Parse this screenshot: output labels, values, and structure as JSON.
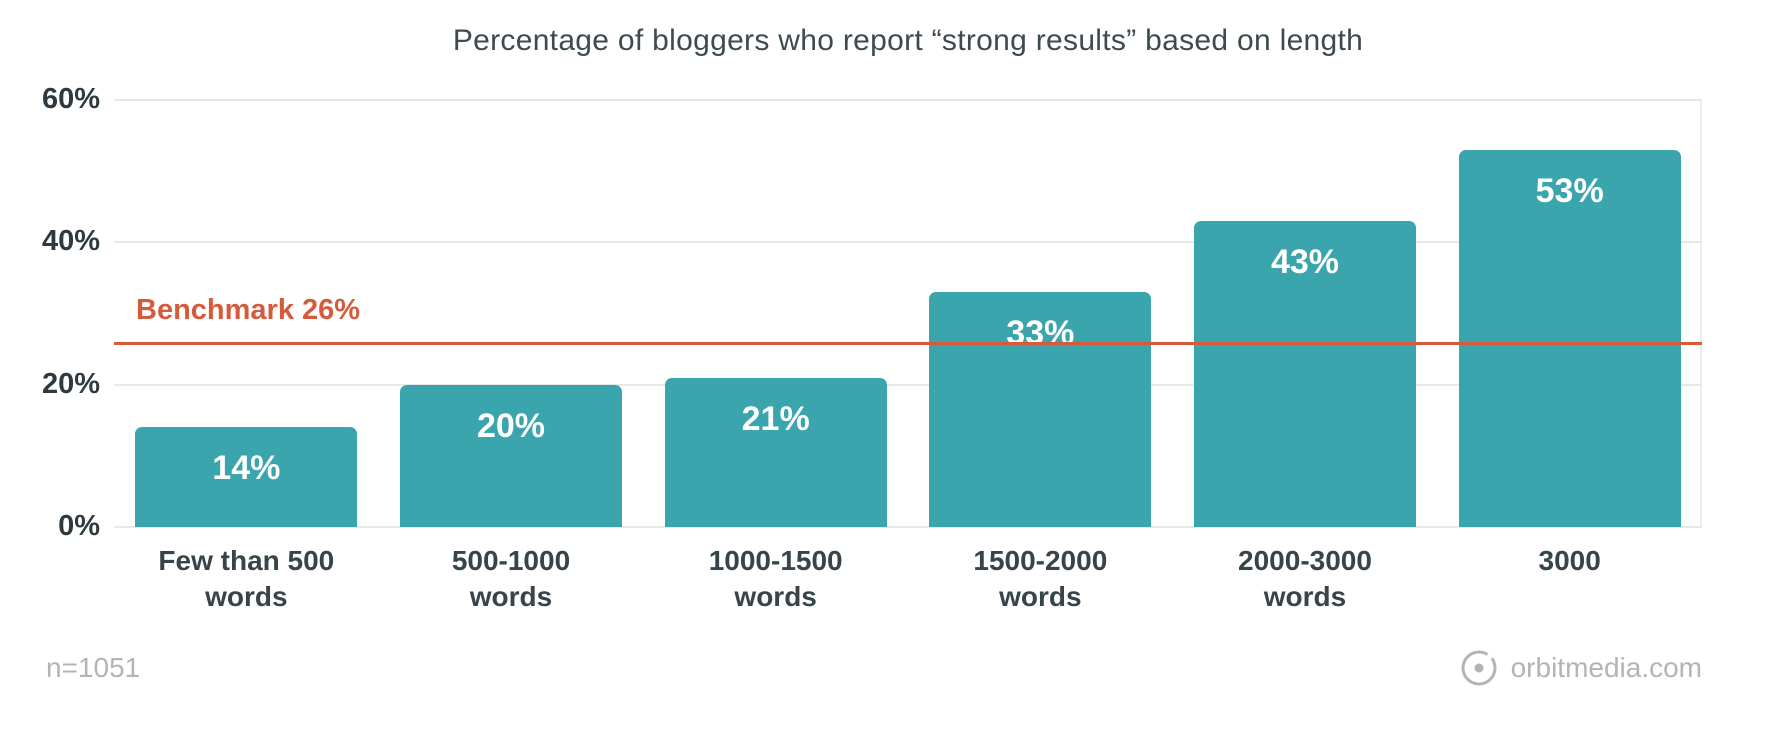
{
  "chart_data": {
    "type": "bar",
    "title": "Percentage of bloggers who report “strong results” based on length",
    "categories": [
      "Few than 500 words",
      "500-1000 words",
      "1000-1500 words",
      "1500-2000 words",
      "2000-3000 words",
      "3000"
    ],
    "values": [
      14,
      20,
      21,
      33,
      43,
      53
    ],
    "value_labels": [
      "14%",
      "20%",
      "21%",
      "33%",
      "43%",
      "53%"
    ],
    "ylabel_ticks": [
      "0%",
      "20%",
      "40%",
      "60%"
    ],
    "ylim": [
      0,
      60
    ],
    "benchmark": {
      "value": 26,
      "label": "Benchmark 26%"
    },
    "bar_color": "#3aa5ad",
    "benchmark_color": "#d65a3c",
    "grid": true,
    "legend": false,
    "xlabel": "",
    "ylabel": ""
  },
  "footer": {
    "sample": "n=1051",
    "brand": "orbitmedia.com"
  }
}
